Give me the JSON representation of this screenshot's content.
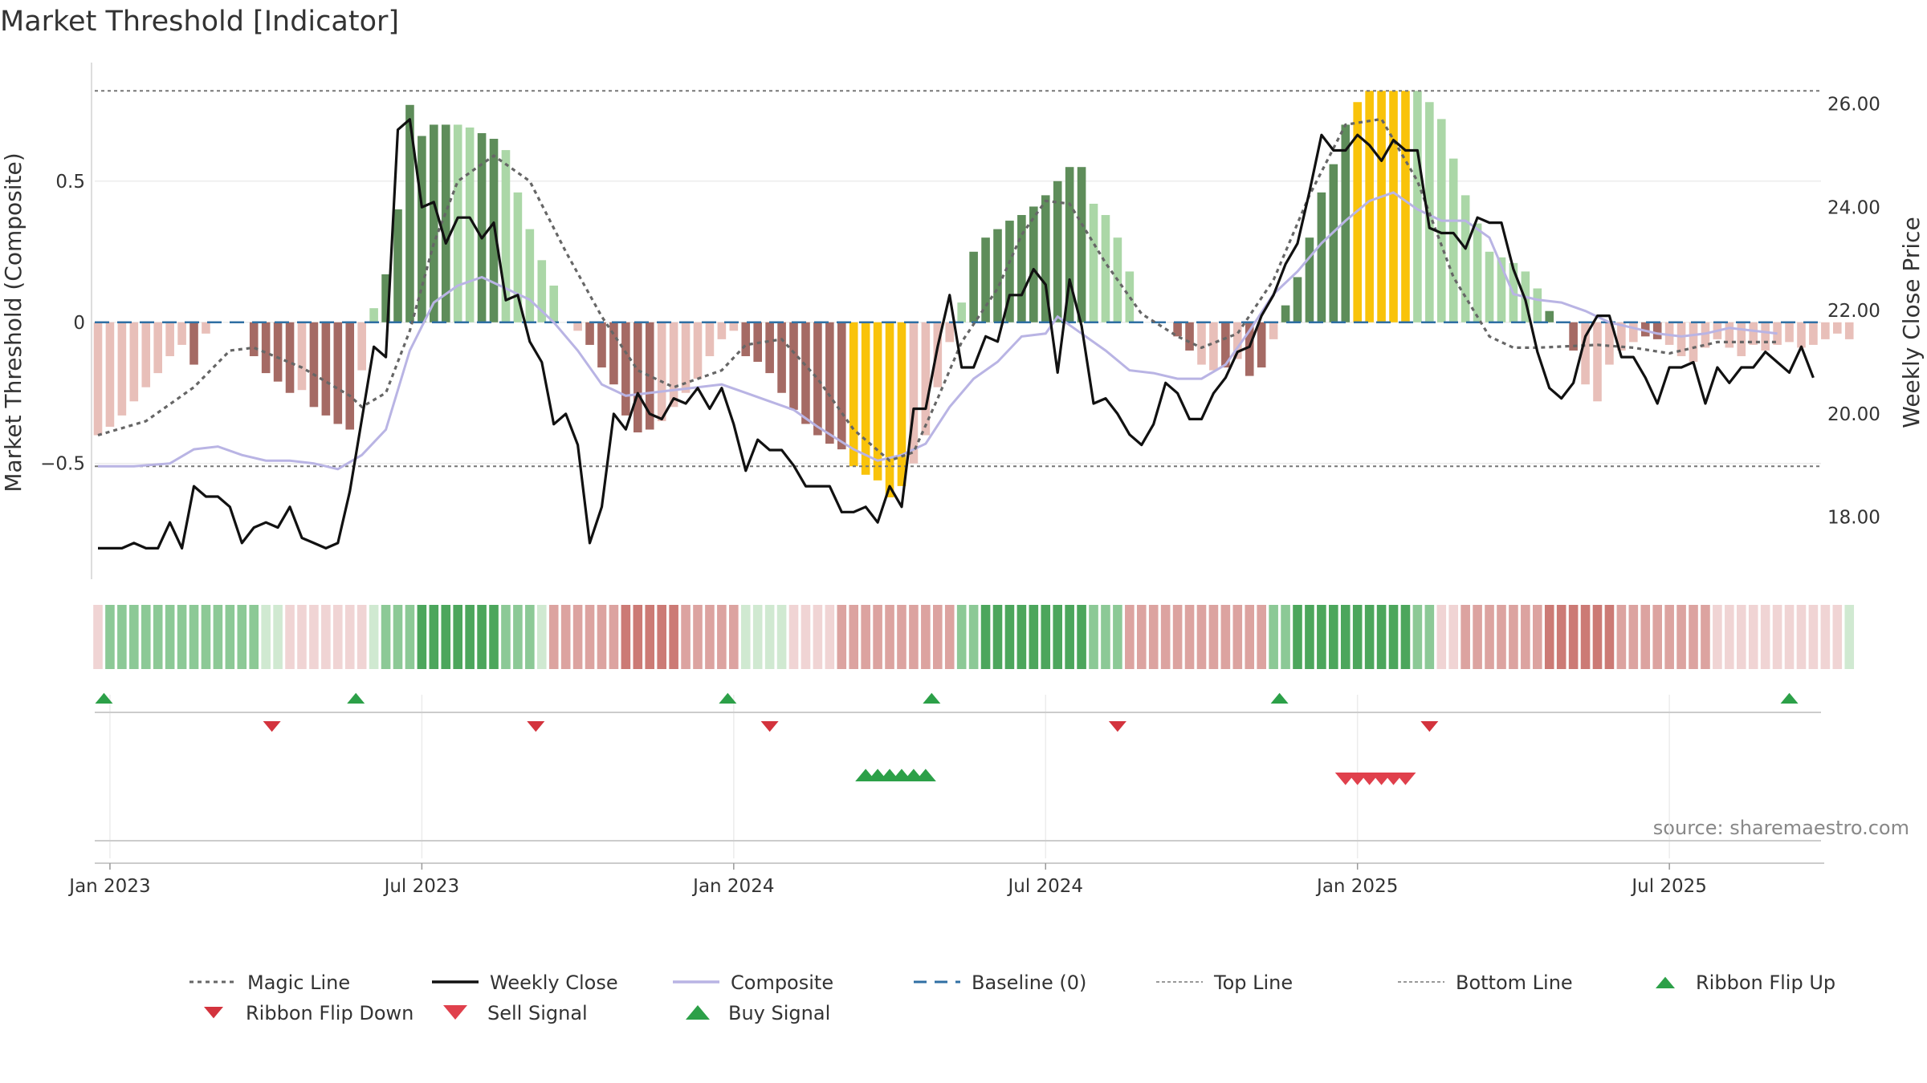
{
  "title": "Market Threshold [Indicator]",
  "source": "source: sharemaestro.com",
  "colors": {
    "green_light": "#abd7a7",
    "green_dark": "#5e8d5a",
    "red_light": "#e8bfb9",
    "red_dark": "#a56a64",
    "gold": "#f9c30a",
    "magic": "#666666",
    "close": "#111111",
    "composite": "#b9b4e4",
    "baseline": "#2f6fa3",
    "signal_up": "#2ca048",
    "signal_down": "#d3333d"
  },
  "chart_data": {
    "type": "line",
    "title": "Market Threshold [Indicator]",
    "ylabel": "Market Threshold (Composite)",
    "y2label": "Weekly Close Price",
    "ylim": [
      -0.91,
      0.92
    ],
    "y2lim": [
      16.8,
      26.8
    ],
    "y_ticks": [
      {
        "v": 0.5,
        "label": "0.5"
      },
      {
        "v": 0,
        "label": "0"
      },
      {
        "v": -0.5,
        "label": "−0.5"
      }
    ],
    "y2_ticks": [
      {
        "v": 26,
        "label": "26.00"
      },
      {
        "v": 24,
        "label": "24.00"
      },
      {
        "v": 22,
        "label": "22.00"
      },
      {
        "v": 20,
        "label": "20.00"
      },
      {
        "v": 18,
        "label": "18.00"
      }
    ],
    "x_ticks": [
      {
        "week": 1,
        "label": "Jan 2023"
      },
      {
        "week": 27,
        "label": "Jul 2023"
      },
      {
        "week": 53,
        "label": "Jan 2024"
      },
      {
        "week": 79,
        "label": "Jul 2024"
      },
      {
        "week": 105,
        "label": "Jan 2025"
      },
      {
        "week": 131,
        "label": "Jul 2025"
      }
    ],
    "top_line": 0.82,
    "bottom_line": -0.51,
    "baseline": 0,
    "composite_bars_by_week": [
      -0.4,
      -0.37,
      -0.33,
      -0.28,
      -0.23,
      -0.18,
      -0.12,
      -0.08,
      -0.15,
      -0.04,
      0,
      0,
      0,
      -0.12,
      -0.18,
      -0.21,
      -0.25,
      -0.24,
      -0.3,
      -0.33,
      -0.36,
      -0.38,
      -0.17,
      0.05,
      0.17,
      0.4,
      0.77,
      0.66,
      0.7,
      0.7,
      0.7,
      0.69,
      0.67,
      0.65,
      0.61,
      0.46,
      0.33,
      0.22,
      0.13,
      0,
      -0.03,
      -0.08,
      -0.16,
      -0.22,
      -0.33,
      -0.39,
      -0.38,
      -0.35,
      -0.3,
      -0.25,
      -0.2,
      -0.12,
      -0.06,
      -0.03,
      -0.12,
      -0.14,
      -0.18,
      -0.25,
      -0.31,
      -0.36,
      -0.4,
      -0.43,
      -0.45,
      -0.51,
      -0.54,
      -0.56,
      -0.62,
      -0.58,
      -0.5,
      -0.4,
      -0.23,
      -0.07,
      0.07,
      0.25,
      0.3,
      0.33,
      0.36,
      0.38,
      0.41,
      0.45,
      0.5,
      0.55,
      0.55,
      0.42,
      0.38,
      0.3,
      0.18,
      0,
      0,
      0,
      -0.05,
      -0.1,
      -0.15,
      -0.17,
      -0.16,
      -0.13,
      -0.19,
      -0.16,
      -0.06,
      0.06,
      0.16,
      0.3,
      0.46,
      0.56,
      0.7,
      0.78,
      0.82,
      0.82,
      0.82,
      0.82,
      0.82,
      0.78,
      0.72,
      0.58,
      0.45,
      0.35,
      0.25,
      0.23,
      0.21,
      0.18,
      0.12,
      0.04,
      0,
      -0.1,
      -0.22,
      -0.28,
      -0.15,
      -0.1,
      -0.07,
      -0.05,
      -0.06,
      -0.08,
      -0.12,
      -0.14,
      -0.09,
      -0.06,
      -0.09,
      -0.12,
      -0.08,
      -0.1,
      -0.08,
      -0.07,
      -0.09,
      -0.08,
      -0.06,
      -0.04,
      -0.06
    ],
    "bar_shade_by_week": [
      "L",
      "L",
      "L",
      "L",
      "L",
      "L",
      "L",
      "L",
      "D",
      "L",
      "L",
      "L",
      "L",
      "D",
      "D",
      "D",
      "D",
      "L",
      "D",
      "D",
      "D",
      "D",
      "L",
      "L",
      "D",
      "D",
      "D",
      "D",
      "D",
      "D",
      "L",
      "L",
      "D",
      "D",
      "L",
      "L",
      "L",
      "L",
      "L",
      "L",
      "L",
      "D",
      "D",
      "D",
      "D",
      "D",
      "D",
      "L",
      "L",
      "L",
      "L",
      "L",
      "L",
      "L",
      "D",
      "D",
      "D",
      "D",
      "D",
      "D",
      "D",
      "D",
      "D",
      "G",
      "G",
      "G",
      "G",
      "G",
      "L",
      "L",
      "L",
      "L",
      "L",
      "D",
      "D",
      "D",
      "D",
      "D",
      "D",
      "D",
      "D",
      "D",
      "D",
      "L",
      "L",
      "L",
      "L",
      "L",
      "L",
      "L",
      "D",
      "D",
      "L",
      "L",
      "D",
      "L",
      "D",
      "D",
      "L",
      "D",
      "D",
      "D",
      "D",
      "D",
      "D",
      "G",
      "G",
      "G",
      "G",
      "G",
      "L",
      "L",
      "L",
      "L",
      "L",
      "L",
      "L",
      "L",
      "L",
      "L",
      "L",
      "D",
      "D",
      "D",
      "L",
      "L",
      "L",
      "L",
      "L",
      "D",
      "D",
      "L",
      "L",
      "L",
      "L",
      "L",
      "L",
      "L",
      "L",
      "L",
      "L",
      "L",
      "L",
      "L",
      "L"
    ],
    "magic_line": [
      [
        0,
        -0.4
      ],
      [
        4,
        -0.35
      ],
      [
        8,
        -0.23
      ],
      [
        11,
        -0.1
      ],
      [
        13,
        -0.09
      ],
      [
        17,
        -0.16
      ],
      [
        21,
        -0.26
      ],
      [
        22,
        -0.3
      ],
      [
        24,
        -0.25
      ],
      [
        26,
        -0.03
      ],
      [
        28,
        0.28
      ],
      [
        30,
        0.5
      ],
      [
        33,
        0.59
      ],
      [
        36,
        0.5
      ],
      [
        39,
        0.25
      ],
      [
        42,
        0.02
      ],
      [
        45,
        -0.17
      ],
      [
        48,
        -0.23
      ],
      [
        52,
        -0.17
      ],
      [
        54,
        -0.08
      ],
      [
        57,
        -0.06
      ],
      [
        60,
        -0.2
      ],
      [
        63,
        -0.38
      ],
      [
        66,
        -0.49
      ],
      [
        68,
        -0.46
      ],
      [
        70,
        -0.27
      ],
      [
        72,
        -0.07
      ],
      [
        75,
        0.12
      ],
      [
        77,
        0.31
      ],
      [
        79,
        0.43
      ],
      [
        81,
        0.42
      ],
      [
        84,
        0.21
      ],
      [
        87,
        0.03
      ],
      [
        90,
        -0.05
      ],
      [
        92,
        -0.09
      ],
      [
        95,
        -0.04
      ],
      [
        98,
        0.15
      ],
      [
        101,
        0.45
      ],
      [
        104,
        0.7
      ],
      [
        107,
        0.72
      ],
      [
        110,
        0.5
      ],
      [
        113,
        0.16
      ],
      [
        116,
        -0.05
      ],
      [
        118,
        -0.09
      ],
      [
        120,
        -0.09
      ],
      [
        125,
        -0.08
      ],
      [
        128,
        -0.09
      ],
      [
        131,
        -0.11
      ],
      [
        135,
        -0.07
      ],
      [
        140,
        -0.07
      ]
    ],
    "composite_line": [
      [
        0,
        -0.51
      ],
      [
        3,
        -0.51
      ],
      [
        6,
        -0.5
      ],
      [
        8,
        -0.45
      ],
      [
        10,
        -0.44
      ],
      [
        12,
        -0.47
      ],
      [
        14,
        -0.49
      ],
      [
        16,
        -0.49
      ],
      [
        18,
        -0.5
      ],
      [
        20,
        -0.52
      ],
      [
        22,
        -0.47
      ],
      [
        24,
        -0.38
      ],
      [
        26,
        -0.1
      ],
      [
        28,
        0.07
      ],
      [
        30,
        0.13
      ],
      [
        32,
        0.16
      ],
      [
        34,
        0.12
      ],
      [
        36,
        0.08
      ],
      [
        38,
        0.0
      ],
      [
        40,
        -0.1
      ],
      [
        42,
        -0.22
      ],
      [
        44,
        -0.26
      ],
      [
        46,
        -0.25
      ],
      [
        48,
        -0.24
      ],
      [
        50,
        -0.23
      ],
      [
        52,
        -0.22
      ],
      [
        54,
        -0.25
      ],
      [
        56,
        -0.28
      ],
      [
        58,
        -0.31
      ],
      [
        60,
        -0.37
      ],
      [
        63,
        -0.45
      ],
      [
        65,
        -0.49
      ],
      [
        67,
        -0.47
      ],
      [
        69,
        -0.43
      ],
      [
        71,
        -0.3
      ],
      [
        73,
        -0.2
      ],
      [
        75,
        -0.14
      ],
      [
        77,
        -0.05
      ],
      [
        79,
        -0.04
      ],
      [
        80,
        0.02
      ],
      [
        82,
        -0.04
      ],
      [
        84,
        -0.1
      ],
      [
        86,
        -0.17
      ],
      [
        88,
        -0.18
      ],
      [
        90,
        -0.2
      ],
      [
        92,
        -0.2
      ],
      [
        94,
        -0.15
      ],
      [
        96,
        -0.03
      ],
      [
        98,
        0.1
      ],
      [
        100,
        0.18
      ],
      [
        102,
        0.28
      ],
      [
        104,
        0.36
      ],
      [
        106,
        0.43
      ],
      [
        108,
        0.46
      ],
      [
        110,
        0.4
      ],
      [
        112,
        0.36
      ],
      [
        114,
        0.36
      ],
      [
        116,
        0.3
      ],
      [
        118,
        0.1
      ],
      [
        120,
        0.08
      ],
      [
        122,
        0.07
      ],
      [
        124,
        0.04
      ],
      [
        126,
        0.0
      ],
      [
        128,
        -0.02
      ],
      [
        130,
        -0.04
      ],
      [
        132,
        -0.05
      ],
      [
        134,
        -0.04
      ],
      [
        136,
        -0.02
      ],
      [
        138,
        -0.03
      ],
      [
        140,
        -0.04
      ]
    ],
    "weekly_close": [
      [
        0,
        17.4
      ],
      [
        1,
        17.4
      ],
      [
        2,
        17.4
      ],
      [
        3,
        17.5
      ],
      [
        4,
        17.4
      ],
      [
        5,
        17.4
      ],
      [
        6,
        17.9
      ],
      [
        7,
        17.4
      ],
      [
        8,
        18.6
      ],
      [
        9,
        18.4
      ],
      [
        10,
        18.4
      ],
      [
        11,
        18.2
      ],
      [
        12,
        17.5
      ],
      [
        13,
        17.8
      ],
      [
        14,
        17.9
      ],
      [
        15,
        17.8
      ],
      [
        16,
        18.2
      ],
      [
        17,
        17.6
      ],
      [
        18,
        17.5
      ],
      [
        19,
        17.4
      ],
      [
        20,
        17.5
      ],
      [
        21,
        18.5
      ],
      [
        22,
        19.9
      ],
      [
        23,
        21.3
      ],
      [
        24,
        21.1
      ],
      [
        25,
        25.5
      ],
      [
        26,
        25.7
      ],
      [
        27,
        24.0
      ],
      [
        28,
        24.1
      ],
      [
        29,
        23.3
      ],
      [
        30,
        23.8
      ],
      [
        31,
        23.8
      ],
      [
        32,
        23.4
      ],
      [
        33,
        23.7
      ],
      [
        34,
        22.2
      ],
      [
        35,
        22.3
      ],
      [
        36,
        21.4
      ],
      [
        37,
        21.0
      ],
      [
        38,
        19.8
      ],
      [
        39,
        20.0
      ],
      [
        40,
        19.4
      ],
      [
        41,
        17.5
      ],
      [
        42,
        18.2
      ],
      [
        43,
        20.0
      ],
      [
        44,
        19.7
      ],
      [
        45,
        20.4
      ],
      [
        46,
        20.0
      ],
      [
        47,
        19.9
      ],
      [
        48,
        20.3
      ],
      [
        49,
        20.2
      ],
      [
        50,
        20.5
      ],
      [
        51,
        20.1
      ],
      [
        52,
        20.5
      ],
      [
        53,
        19.8
      ],
      [
        54,
        18.9
      ],
      [
        55,
        19.5
      ],
      [
        56,
        19.3
      ],
      [
        57,
        19.3
      ],
      [
        58,
        19.0
      ],
      [
        59,
        18.6
      ],
      [
        60,
        18.6
      ],
      [
        61,
        18.6
      ],
      [
        62,
        18.1
      ],
      [
        63,
        18.1
      ],
      [
        64,
        18.2
      ],
      [
        65,
        17.9
      ],
      [
        66,
        18.6
      ],
      [
        67,
        18.2
      ],
      [
        68,
        20.1
      ],
      [
        69,
        20.1
      ],
      [
        70,
        21.3
      ],
      [
        71,
        22.3
      ],
      [
        72,
        20.9
      ],
      [
        73,
        20.9
      ],
      [
        74,
        21.5
      ],
      [
        75,
        21.4
      ],
      [
        76,
        22.3
      ],
      [
        77,
        22.3
      ],
      [
        78,
        22.8
      ],
      [
        79,
        22.5
      ],
      [
        80,
        20.8
      ],
      [
        81,
        22.6
      ],
      [
        82,
        21.7
      ],
      [
        83,
        20.2
      ],
      [
        84,
        20.3
      ],
      [
        85,
        20.0
      ],
      [
        86,
        19.6
      ],
      [
        87,
        19.4
      ],
      [
        88,
        19.8
      ],
      [
        89,
        20.6
      ],
      [
        90,
        20.4
      ],
      [
        91,
        19.9
      ],
      [
        92,
        19.9
      ],
      [
        93,
        20.4
      ],
      [
        94,
        20.7
      ],
      [
        95,
        21.2
      ],
      [
        96,
        21.3
      ],
      [
        97,
        21.9
      ],
      [
        98,
        22.3
      ],
      [
        99,
        22.9
      ],
      [
        100,
        23.3
      ],
      [
        101,
        24.3
      ],
      [
        102,
        25.4
      ],
      [
        103,
        25.1
      ],
      [
        104,
        25.1
      ],
      [
        105,
        25.4
      ],
      [
        106,
        25.2
      ],
      [
        107,
        24.9
      ],
      [
        108,
        25.3
      ],
      [
        109,
        25.1
      ],
      [
        110,
        25.1
      ],
      [
        111,
        23.6
      ],
      [
        112,
        23.5
      ],
      [
        113,
        23.5
      ],
      [
        114,
        23.2
      ],
      [
        115,
        23.8
      ],
      [
        116,
        23.7
      ],
      [
        117,
        23.7
      ],
      [
        118,
        22.8
      ],
      [
        119,
        22.2
      ],
      [
        120,
        21.2
      ],
      [
        121,
        20.5
      ],
      [
        122,
        20.3
      ],
      [
        123,
        20.6
      ],
      [
        124,
        21.5
      ],
      [
        125,
        21.9
      ],
      [
        126,
        21.9
      ],
      [
        127,
        21.1
      ],
      [
        128,
        21.1
      ],
      [
        129,
        20.7
      ],
      [
        130,
        20.2
      ],
      [
        131,
        20.9
      ],
      [
        132,
        20.9
      ],
      [
        133,
        21.0
      ],
      [
        134,
        20.2
      ],
      [
        135,
        20.9
      ],
      [
        136,
        20.6
      ],
      [
        137,
        20.9
      ],
      [
        138,
        20.9
      ],
      [
        139,
        21.2
      ],
      [
        140,
        21.0
      ],
      [
        141,
        20.8
      ],
      [
        142,
        21.3
      ],
      [
        143,
        20.7
      ]
    ],
    "ribbon_by_week": [
      "r1",
      "g2",
      "g2",
      "g2",
      "g2",
      "g2",
      "g2",
      "g2",
      "g2",
      "g2",
      "g2",
      "g2",
      "g2",
      "g2",
      "g1",
      "g1",
      "r1",
      "r1",
      "r1",
      "r1",
      "r1",
      "r1",
      "r1",
      "g1",
      "g2",
      "g2",
      "g2",
      "g3",
      "g3",
      "g3",
      "g3",
      "g3",
      "g3",
      "g3",
      "g2",
      "g2",
      "g2",
      "g1",
      "r2",
      "r2",
      "r2",
      "r2",
      "r2",
      "r2",
      "r3",
      "r3",
      "r3",
      "r3",
      "r3",
      "r2",
      "r2",
      "r2",
      "r2",
      "r2",
      "g1",
      "g1",
      "g1",
      "g1",
      "r1",
      "r1",
      "r1",
      "r1",
      "r2",
      "r2",
      "r2",
      "r2",
      "r2",
      "r2",
      "r2",
      "r2",
      "r2",
      "r2",
      "g2",
      "g2",
      "g3",
      "g3",
      "g3",
      "g3",
      "g3",
      "g3",
      "g3",
      "g3",
      "g3",
      "g2",
      "g2",
      "g2",
      "r2",
      "r2",
      "r2",
      "r2",
      "r2",
      "r2",
      "r2",
      "r2",
      "r2",
      "r2",
      "r2",
      "r2",
      "g2",
      "g2",
      "g3",
      "g3",
      "g3",
      "g3",
      "g3",
      "g3",
      "g3",
      "g3",
      "g3",
      "g3",
      "g2",
      "g2",
      "r1",
      "r1",
      "r2",
      "r2",
      "r2",
      "r2",
      "r2",
      "r2",
      "r2",
      "r3",
      "r3",
      "r3",
      "r3",
      "r3",
      "r3",
      "r2",
      "r2",
      "r2",
      "r2",
      "r2",
      "r2",
      "r2",
      "r2",
      "r1",
      "r1",
      "r1",
      "r1",
      "r1",
      "r1",
      "r1",
      "r1",
      "r1",
      "r1",
      "r1",
      "g1"
    ],
    "ribbon_flip_up_weeks": [
      0.5,
      21.5,
      52.5,
      69.5,
      98.5,
      141
    ],
    "ribbon_flip_down_weeks": [
      14.5,
      36.5,
      56,
      85,
      111
    ],
    "buy_signal_weeks": [
      64,
      65,
      66,
      67,
      68,
      69
    ],
    "sell_signal_weeks": [
      104,
      105,
      106,
      107,
      108,
      109
    ]
  },
  "legend": [
    {
      "key": "magic",
      "label": "Magic Line"
    },
    {
      "key": "close",
      "label": "Weekly Close"
    },
    {
      "key": "composite",
      "label": "Composite"
    },
    {
      "key": "baseline",
      "label": "Baseline (0)"
    },
    {
      "key": "top",
      "label": "Top Line"
    },
    {
      "key": "bottom",
      "label": "Bottom Line"
    },
    {
      "key": "flipup",
      "label": "Ribbon Flip Up"
    },
    {
      "key": "flipdown",
      "label": "Ribbon Flip Down"
    },
    {
      "key": "sell",
      "label": "Sell Signal"
    },
    {
      "key": "buy",
      "label": "Buy Signal"
    }
  ]
}
